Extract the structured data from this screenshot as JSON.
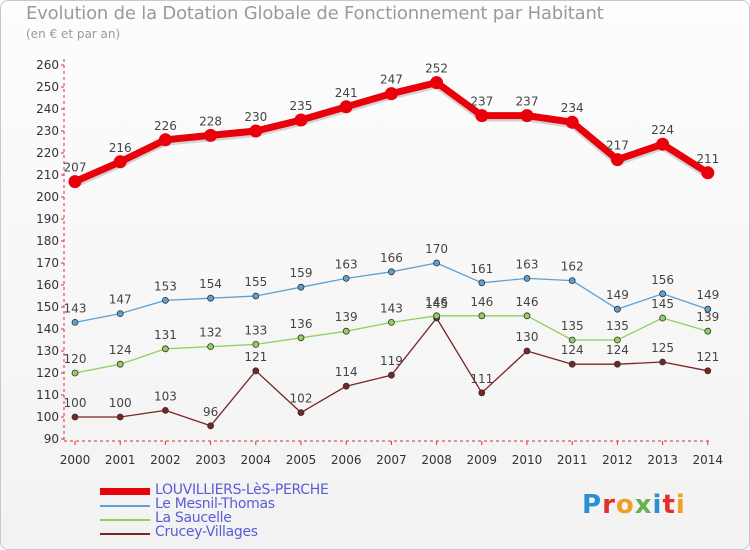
{
  "title": "Evolution de la Dotation Globale de Fonctionnement par Habitant",
  "subtitle": "(en € et par an)",
  "logo_text": "Proxiti",
  "chart_data": {
    "type": "line",
    "title": "Evolution de la Dotation Globale de Fonctionnement par Habitant",
    "subtitle": "(en € et par an)",
    "xlabel": "",
    "ylabel": "",
    "ylim": [
      90,
      260
    ],
    "yticks": [
      90,
      100,
      110,
      120,
      130,
      140,
      150,
      160,
      170,
      180,
      190,
      200,
      210,
      220,
      230,
      240,
      250,
      260
    ],
    "grid": false,
    "legend_position": "bottom-left",
    "categories": [
      "2000",
      "2001",
      "2002",
      "2003",
      "2004",
      "2005",
      "2006",
      "2007",
      "2008",
      "2009",
      "2010",
      "2011",
      "2012",
      "2013",
      "2014"
    ],
    "series": [
      {
        "name": "LOUVILLIERS-LèS-PERCHE",
        "color": "#e8000b",
        "values": [
          207,
          216,
          226,
          228,
          230,
          235,
          241,
          247,
          252,
          237,
          237,
          234,
          217,
          224,
          211
        ]
      },
      {
        "name": "Le Mesnil-Thomas",
        "color": "#5da1d3",
        "values": [
          143,
          147,
          153,
          154,
          155,
          159,
          163,
          166,
          170,
          161,
          163,
          162,
          149,
          156,
          149
        ]
      },
      {
        "name": "La Saucelle",
        "color": "#90d060",
        "values": [
          120,
          124,
          131,
          132,
          133,
          136,
          139,
          143,
          146,
          146,
          146,
          135,
          135,
          145,
          139
        ]
      },
      {
        "name": "Crucey-Villages",
        "color": "#7a2424",
        "values": [
          100,
          100,
          103,
          96,
          121,
          102,
          114,
          119,
          145,
          111,
          130,
          124,
          124,
          125,
          121
        ]
      }
    ]
  }
}
